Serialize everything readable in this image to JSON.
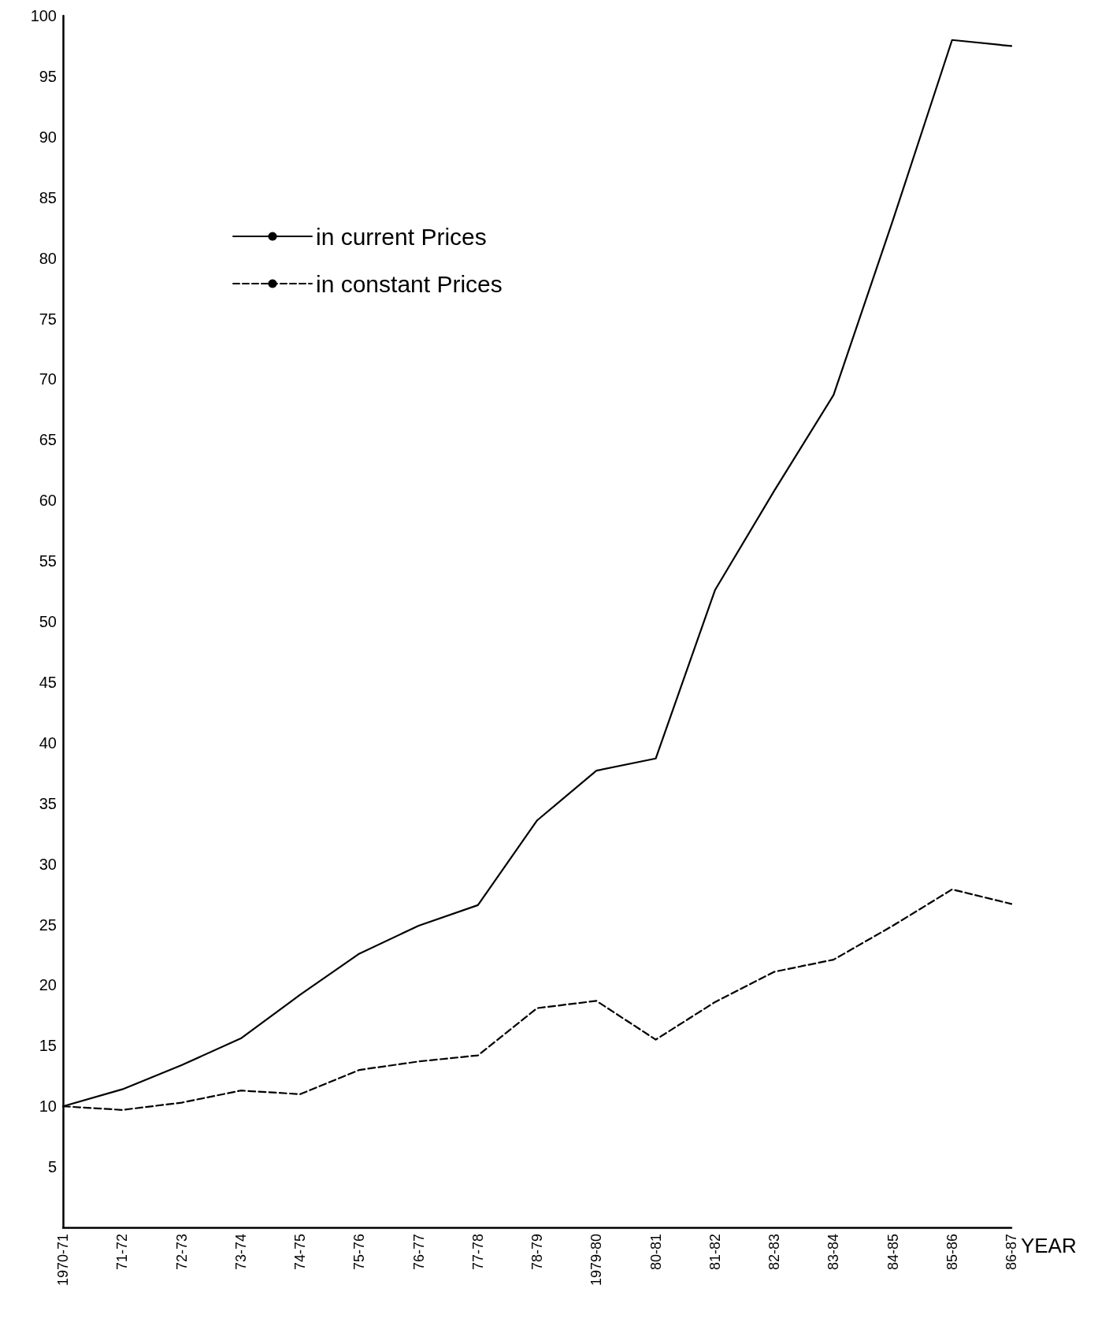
{
  "chart_data": {
    "type": "line",
    "xlabel": "YEAR",
    "categories": [
      "1970-71",
      "71-72",
      "72-73",
      "73-74",
      "74-75",
      "75-76",
      "76-77",
      "77-78",
      "78-79",
      "1979-80",
      "80-81",
      "81-82",
      "82-83",
      "83-84",
      "84-85",
      "85-86",
      "86-87"
    ],
    "series": [
      {
        "name": "in current Prices",
        "color": "#000000",
        "line_style": "solid",
        "values": [
          10,
          11.4,
          13.4,
          15.6,
          19.2,
          22.6,
          24.9,
          26.6,
          33.6,
          37.7,
          38.7,
          52.6,
          60.8,
          68.7,
          83.1,
          98,
          97.5
        ]
      },
      {
        "name": "in constant Prices",
        "color": "#000000",
        "line_style": "dashed",
        "values": [
          10,
          9.7,
          10.3,
          11.3,
          11,
          13,
          13.7,
          14.2,
          18.1,
          18.7,
          15.5,
          18.6,
          21.1,
          22.1,
          24.9,
          27.9,
          26.7
        ]
      }
    ],
    "ylim": [
      0,
      100
    ],
    "yticks": [
      5,
      10,
      15,
      20,
      25,
      30,
      35,
      40,
      45,
      50,
      55,
      60,
      65,
      70,
      75,
      80,
      85,
      90,
      95,
      100
    ],
    "grid": false,
    "legend": "top left",
    "marker": "none"
  }
}
